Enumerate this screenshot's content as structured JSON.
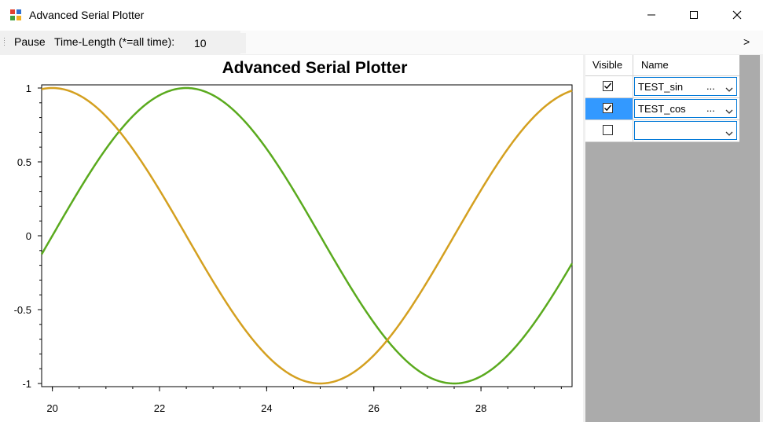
{
  "window": {
    "title": "Advanced Serial Plotter"
  },
  "toolbar": {
    "pause_label": "Pause",
    "time_length_label": "Time-Length (*=all time):",
    "time_length_value": "10",
    "overflow_label": ">"
  },
  "grid": {
    "columns": [
      "Visible",
      "Name"
    ],
    "rows": [
      {
        "visible": true,
        "name": "TEST_sin",
        "ellipsis": "...",
        "selected": false
      },
      {
        "visible": true,
        "name": "TEST_cos",
        "ellipsis": "...",
        "selected": true
      },
      {
        "visible": false,
        "name": "",
        "ellipsis": "",
        "selected": false
      }
    ]
  },
  "colors": {
    "series_sin": "#5aaa1e",
    "series_cos": "#d4a020",
    "selection": "#3399ff",
    "combo_border": "#0078d7"
  },
  "chart_data": {
    "type": "line",
    "title": "Advanced Serial Plotter",
    "xlim": [
      19.8,
      29.7
    ],
    "ylim": [
      -1,
      1
    ],
    "xticks": [
      20,
      22,
      24,
      26,
      28
    ],
    "xtick_labels": [
      "20",
      "22",
      "24",
      "26",
      "28"
    ],
    "yticks": [
      1,
      0.5,
      0,
      -0.5,
      -1
    ],
    "ytick_labels": [
      "1",
      "0.5",
      "0",
      "-0.5",
      "-1"
    ],
    "grid": false,
    "series": [
      {
        "name": "TEST_sin",
        "color": "#5aaa1e",
        "func": "sin",
        "period": 10,
        "phase_peak_x": 22.5
      },
      {
        "name": "TEST_cos",
        "color": "#d4a020",
        "func": "cos",
        "period": 10,
        "phase_peak_x": 20
      }
    ]
  }
}
